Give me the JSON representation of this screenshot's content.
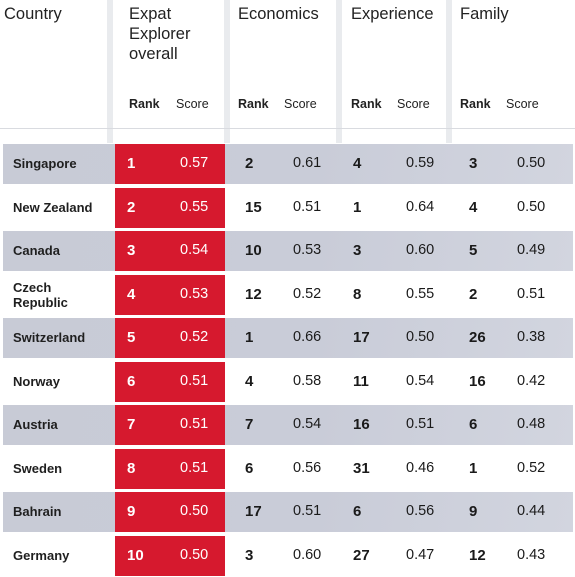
{
  "headers": {
    "country": "Country",
    "overall_line1": "Expat",
    "overall_line2": "Explorer",
    "overall_line3": "overall",
    "economics": "Economics",
    "experience": "Experience",
    "family": "Family",
    "rank": "Rank",
    "score": "Score"
  },
  "rows": [
    {
      "country": "Singapore",
      "overall_rank": "1",
      "overall_score": "0.57",
      "econ_rank": "2",
      "econ_score": "0.61",
      "exp_rank": "4",
      "exp_score": "0.59",
      "fam_rank": "3",
      "fam_score": "0.50"
    },
    {
      "country": "New Zealand",
      "overall_rank": "2",
      "overall_score": "0.55",
      "econ_rank": "15",
      "econ_score": "0.51",
      "exp_rank": "1",
      "exp_score": "0.64",
      "fam_rank": "4",
      "fam_score": "0.50"
    },
    {
      "country": "Canada",
      "overall_rank": "3",
      "overall_score": "0.54",
      "econ_rank": "10",
      "econ_score": "0.53",
      "exp_rank": "3",
      "exp_score": "0.60",
      "fam_rank": "5",
      "fam_score": "0.49"
    },
    {
      "country": "Czech Republic",
      "country_line1": "Czech",
      "country_line2": "Republic",
      "overall_rank": "4",
      "overall_score": "0.53",
      "econ_rank": "12",
      "econ_score": "0.52",
      "exp_rank": "8",
      "exp_score": "0.55",
      "fam_rank": "2",
      "fam_score": "0.51"
    },
    {
      "country": "Switzerland",
      "overall_rank": "5",
      "overall_score": "0.52",
      "econ_rank": "1",
      "econ_score": "0.66",
      "exp_rank": "17",
      "exp_score": "0.50",
      "fam_rank": "26",
      "fam_score": "0.38"
    },
    {
      "country": "Norway",
      "overall_rank": "6",
      "overall_score": "0.51",
      "econ_rank": "4",
      "econ_score": "0.58",
      "exp_rank": "11",
      "exp_score": "0.54",
      "fam_rank": "16",
      "fam_score": "0.42"
    },
    {
      "country": "Austria",
      "overall_rank": "7",
      "overall_score": "0.51",
      "econ_rank": "7",
      "econ_score": "0.54",
      "exp_rank": "16",
      "exp_score": "0.51",
      "fam_rank": "6",
      "fam_score": "0.48"
    },
    {
      "country": "Sweden",
      "overall_rank": "8",
      "overall_score": "0.51",
      "econ_rank": "6",
      "econ_score": "0.56",
      "exp_rank": "31",
      "exp_score": "0.46",
      "fam_rank": "1",
      "fam_score": "0.52"
    },
    {
      "country": "Bahrain",
      "overall_rank": "9",
      "overall_score": "0.50",
      "econ_rank": "17",
      "econ_score": "0.51",
      "exp_rank": "6",
      "exp_score": "0.56",
      "fam_rank": "9",
      "fam_score": "0.44"
    },
    {
      "country": "Germany",
      "overall_rank": "10",
      "overall_score": "0.50",
      "econ_rank": "3",
      "econ_score": "0.60",
      "exp_rank": "27",
      "exp_score": "0.47",
      "fam_rank": "12",
      "fam_score": "0.43"
    }
  ],
  "colors": {
    "accent_red": "#d6192e",
    "band": "#c9ccd8",
    "stripe": "#e9ebee"
  }
}
